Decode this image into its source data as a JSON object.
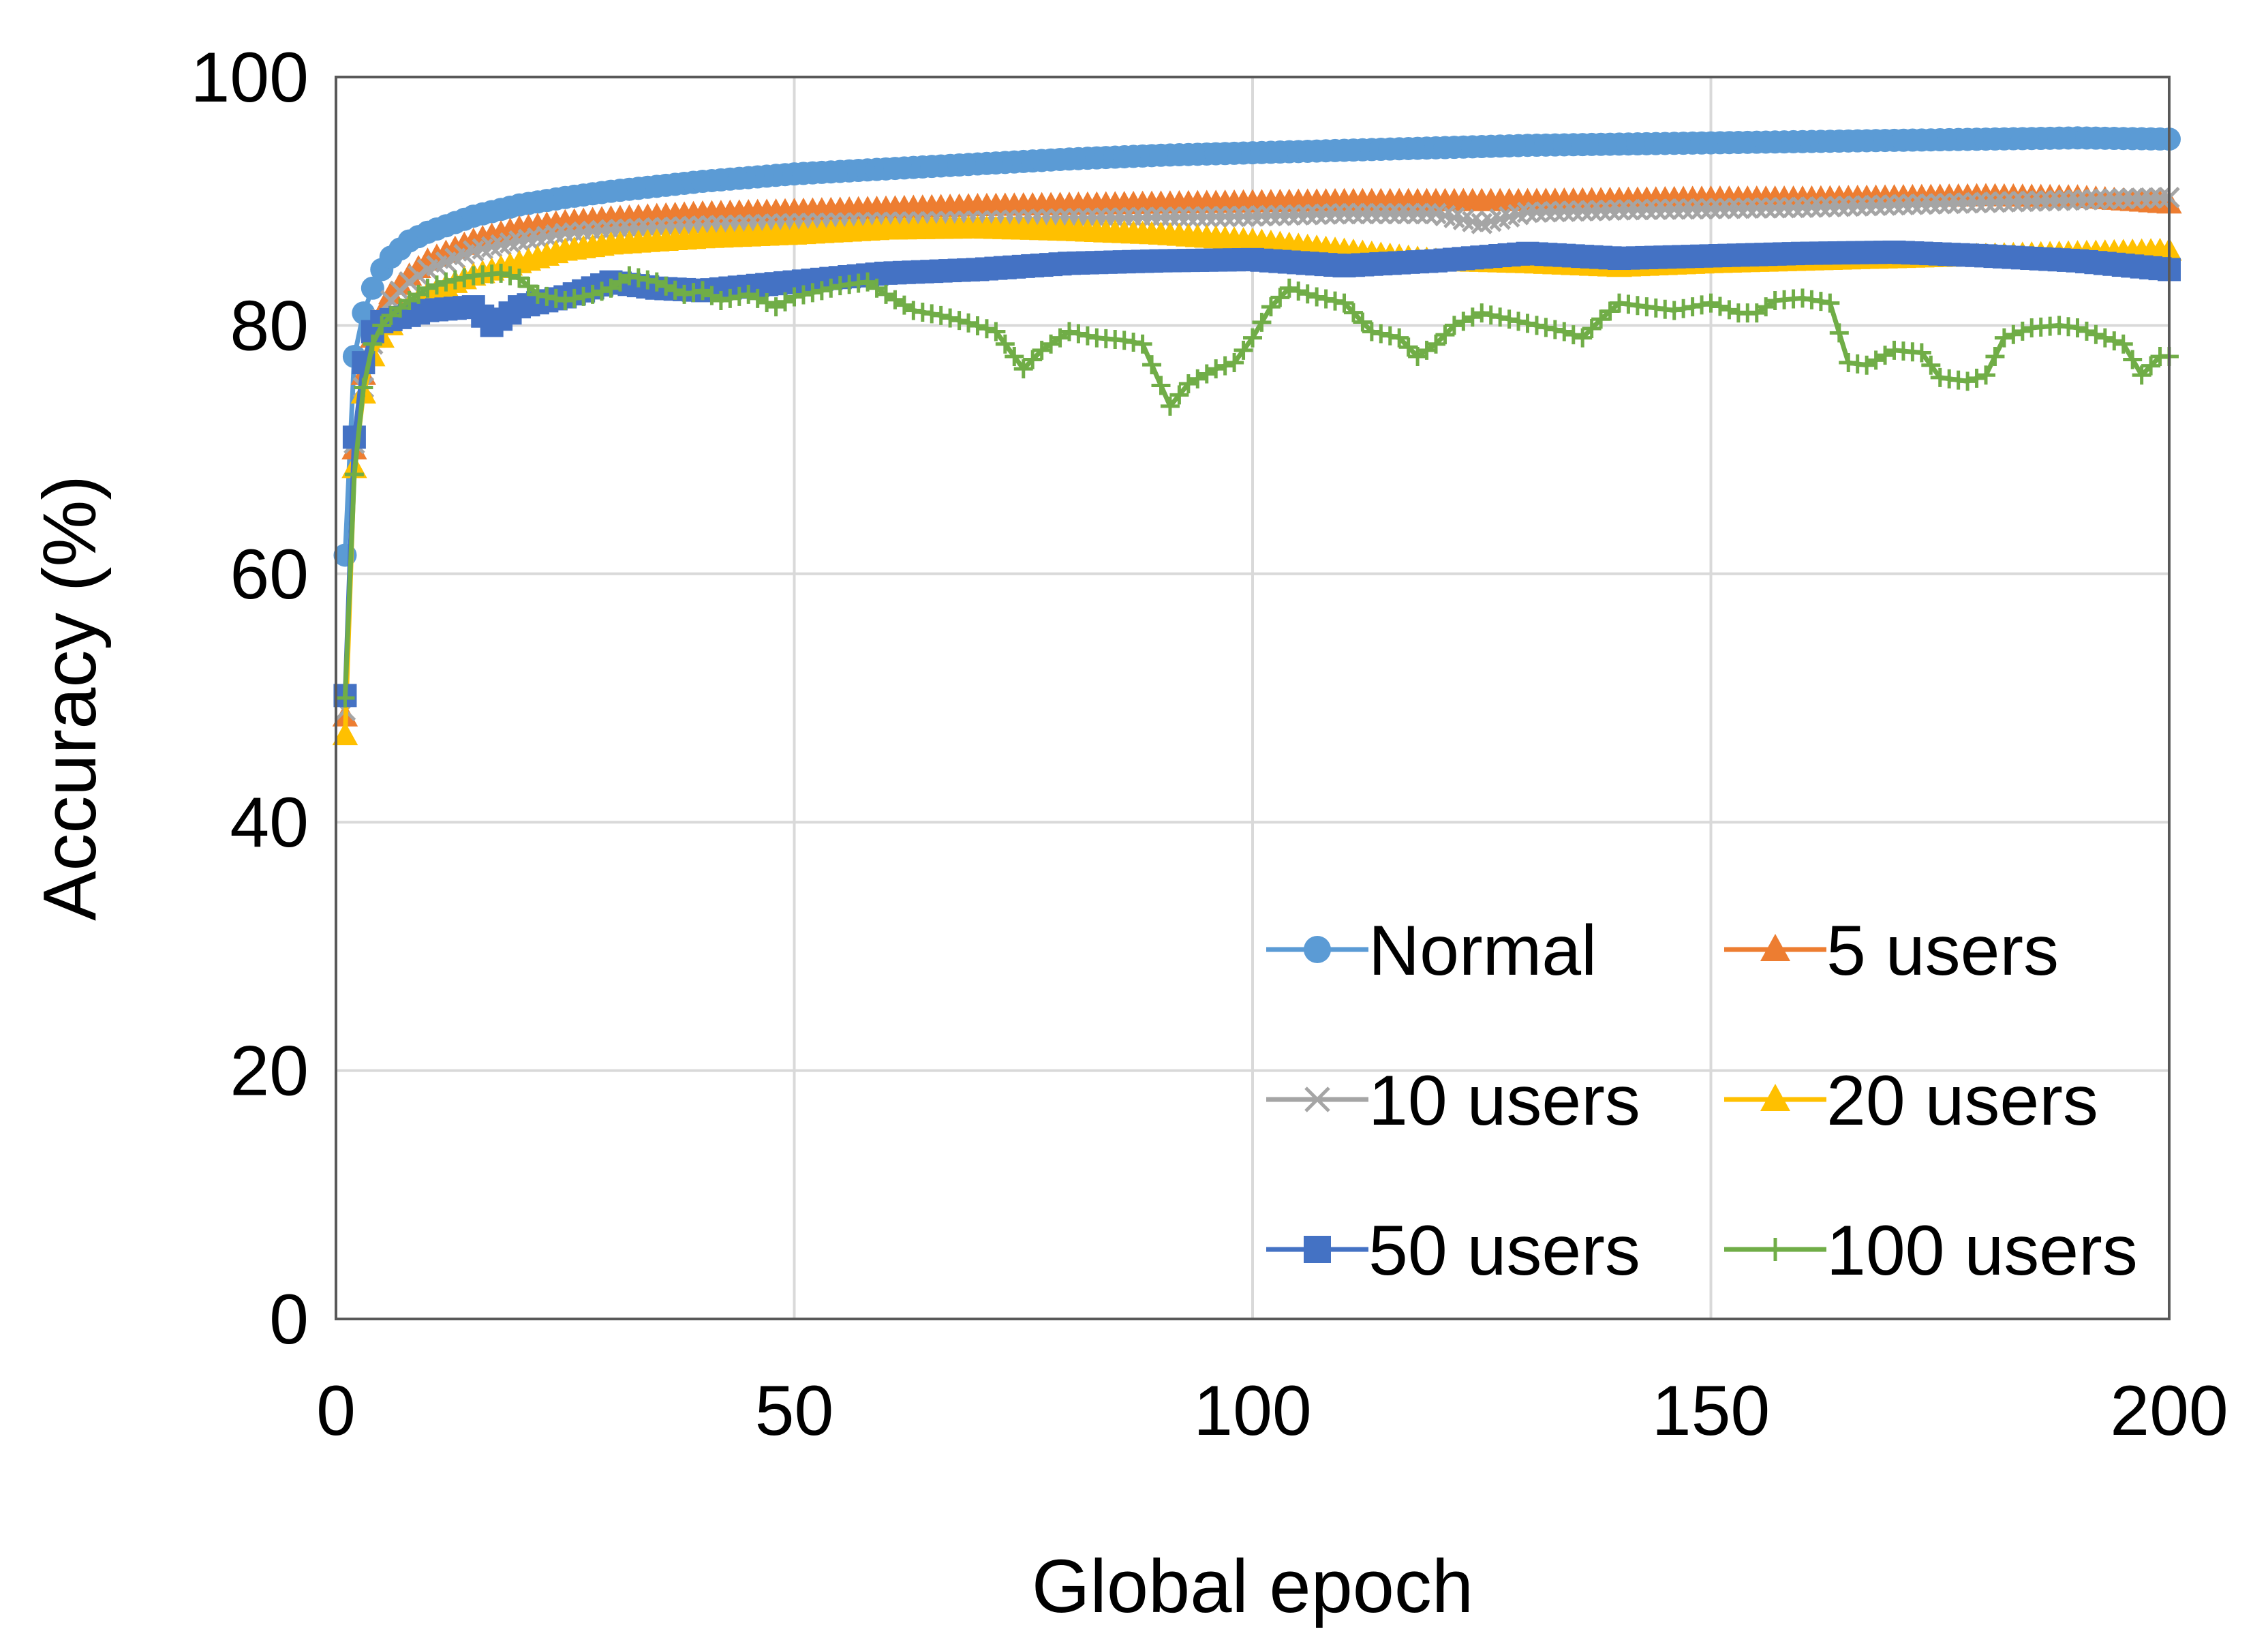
{
  "chart_data": {
    "type": "line",
    "xlabel": "Global epoch",
    "ylabel": "Accuracy (%)",
    "xlim": [
      0,
      200
    ],
    "ylim": [
      0,
      100
    ],
    "xticks": [
      0,
      50,
      100,
      150,
      200
    ],
    "yticks": [
      0,
      20,
      40,
      60,
      80,
      100
    ],
    "grid": true,
    "legend_position": "bottom-right, inside plot, 3 rows x 2 columns",
    "series": [
      {
        "name": "Normal",
        "color": "#5B9BD5",
        "marker": "circle",
        "points": [
          [
            1,
            61.5
          ],
          [
            2,
            77.5
          ],
          [
            3,
            81
          ],
          [
            4,
            83
          ],
          [
            5,
            84.5
          ],
          [
            6,
            85.5
          ],
          [
            8,
            86.8
          ],
          [
            10,
            87.5
          ],
          [
            15,
            88.8
          ],
          [
            20,
            89.7
          ],
          [
            25,
            90.3
          ],
          [
            30,
            90.8
          ],
          [
            40,
            91.6
          ],
          [
            50,
            92.2
          ],
          [
            60,
            92.6
          ],
          [
            70,
            93
          ],
          [
            80,
            93.4
          ],
          [
            90,
            93.7
          ],
          [
            100,
            93.9
          ],
          [
            110,
            94.1
          ],
          [
            120,
            94.3
          ],
          [
            130,
            94.5
          ],
          [
            140,
            94.6
          ],
          [
            150,
            94.7
          ],
          [
            160,
            94.8
          ],
          [
            170,
            94.9
          ],
          [
            180,
            95
          ],
          [
            190,
            95.1
          ],
          [
            200,
            95
          ]
        ]
      },
      {
        "name": "5 users",
        "color": "#ED7D31",
        "marker": "triangle",
        "points": [
          [
            1,
            48.5
          ],
          [
            2,
            70
          ],
          [
            3,
            76
          ],
          [
            4,
            79
          ],
          [
            5,
            81
          ],
          [
            6,
            82.5
          ],
          [
            8,
            84
          ],
          [
            10,
            85.2
          ],
          [
            15,
            86.8
          ],
          [
            20,
            87.8
          ],
          [
            25,
            88.3
          ],
          [
            30,
            88.6
          ],
          [
            40,
            89
          ],
          [
            50,
            89.2
          ],
          [
            60,
            89.4
          ],
          [
            70,
            89.6
          ],
          [
            80,
            89.7
          ],
          [
            90,
            89.8
          ],
          [
            100,
            89.9
          ],
          [
            110,
            90
          ],
          [
            120,
            90
          ],
          [
            130,
            90
          ],
          [
            140,
            90.1
          ],
          [
            150,
            90.2
          ],
          [
            160,
            90.2
          ],
          [
            170,
            90.3
          ],
          [
            180,
            90.4
          ],
          [
            190,
            90.3
          ],
          [
            200,
            89.8
          ]
        ]
      },
      {
        "name": "10 users",
        "color": "#A5A5A5",
        "marker": "x",
        "points": [
          [
            1,
            49
          ],
          [
            2,
            70.5
          ],
          [
            3,
            75
          ],
          [
            4,
            78.5
          ],
          [
            5,
            80.5
          ],
          [
            6,
            82
          ],
          [
            8,
            83.5
          ],
          [
            10,
            84.5
          ],
          [
            15,
            86
          ],
          [
            20,
            86.8
          ],
          [
            25,
            87.4
          ],
          [
            30,
            87.7
          ],
          [
            40,
            88
          ],
          [
            50,
            88.2
          ],
          [
            60,
            88.3
          ],
          [
            70,
            88.4
          ],
          [
            80,
            88.6
          ],
          [
            90,
            88.7
          ],
          [
            100,
            88.8
          ],
          [
            110,
            89
          ],
          [
            120,
            89
          ],
          [
            125,
            88.2
          ],
          [
            130,
            89.1
          ],
          [
            140,
            89.3
          ],
          [
            150,
            89.4
          ],
          [
            160,
            89.5
          ],
          [
            170,
            89.7
          ],
          [
            180,
            89.9
          ],
          [
            190,
            90.1
          ],
          [
            200,
            90.3
          ]
        ]
      },
      {
        "name": "20 users",
        "color": "#FFC000",
        "marker": "triangle",
        "points": [
          [
            1,
            47
          ],
          [
            2,
            68.5
          ],
          [
            3,
            74.5
          ],
          [
            4,
            77.5
          ],
          [
            5,
            79
          ],
          [
            6,
            80
          ],
          [
            8,
            81.5
          ],
          [
            10,
            82.5
          ],
          [
            15,
            84
          ],
          [
            20,
            85
          ],
          [
            25,
            86
          ],
          [
            30,
            86.5
          ],
          [
            40,
            87
          ],
          [
            50,
            87.3
          ],
          [
            60,
            87.7
          ],
          [
            70,
            87.8
          ],
          [
            80,
            87.6
          ],
          [
            90,
            87.3
          ],
          [
            100,
            86.8
          ],
          [
            110,
            86
          ],
          [
            120,
            85.2
          ],
          [
            130,
            85
          ],
          [
            140,
            84.7
          ],
          [
            150,
            85
          ],
          [
            160,
            85.2
          ],
          [
            170,
            85.4
          ],
          [
            180,
            85.6
          ],
          [
            190,
            85.8
          ],
          [
            200,
            86
          ]
        ]
      },
      {
        "name": "50 users",
        "color": "#4472C4",
        "marker": "square",
        "points": [
          [
            1,
            50.2
          ],
          [
            2,
            71
          ],
          [
            3,
            77
          ],
          [
            4,
            79.5
          ],
          [
            5,
            80.3
          ],
          [
            8,
            80.8
          ],
          [
            10,
            81.2
          ],
          [
            15,
            81.5
          ],
          [
            17,
            80
          ],
          [
            20,
            81.5
          ],
          [
            25,
            82.3
          ],
          [
            30,
            83.5
          ],
          [
            35,
            83
          ],
          [
            40,
            82.8
          ],
          [
            50,
            83.5
          ],
          [
            60,
            84.2
          ],
          [
            70,
            84.5
          ],
          [
            80,
            85
          ],
          [
            90,
            85.2
          ],
          [
            100,
            85.3
          ],
          [
            110,
            84.8
          ],
          [
            120,
            85.2
          ],
          [
            130,
            85.8
          ],
          [
            140,
            85.4
          ],
          [
            150,
            85.6
          ],
          [
            160,
            85.8
          ],
          [
            170,
            85.9
          ],
          [
            180,
            85.6
          ],
          [
            190,
            85.2
          ],
          [
            200,
            84.5
          ]
        ]
      },
      {
        "name": "100 users",
        "color": "#70AD47",
        "marker": "plus",
        "points": [
          [
            1,
            50
          ],
          [
            2,
            68
          ],
          [
            3,
            75
          ],
          [
            4,
            78.5
          ],
          [
            5,
            80
          ],
          [
            6,
            80.8
          ],
          [
            8,
            82
          ],
          [
            10,
            83
          ],
          [
            12,
            83.5
          ],
          [
            15,
            84
          ],
          [
            18,
            84.2
          ],
          [
            20,
            83.8
          ],
          [
            22,
            82.5
          ],
          [
            25,
            82
          ],
          [
            28,
            82.5
          ],
          [
            30,
            83
          ],
          [
            32,
            84
          ],
          [
            35,
            83.5
          ],
          [
            38,
            82.5
          ],
          [
            40,
            82.8
          ],
          [
            42,
            82
          ],
          [
            45,
            82.5
          ],
          [
            48,
            81.5
          ],
          [
            50,
            82.3
          ],
          [
            53,
            82.8
          ],
          [
            55,
            83.2
          ],
          [
            58,
            83.5
          ],
          [
            60,
            82.5
          ],
          [
            63,
            81.2
          ],
          [
            66,
            80.8
          ],
          [
            69,
            80.2
          ],
          [
            72,
            79.5
          ],
          [
            75,
            76.5
          ],
          [
            77,
            78
          ],
          [
            80,
            79.5
          ],
          [
            83,
            79
          ],
          [
            86,
            78.8
          ],
          [
            88,
            78.5
          ],
          [
            91,
            73.5
          ],
          [
            93,
            75.3
          ],
          [
            96,
            76.5
          ],
          [
            98,
            77
          ],
          [
            100,
            79
          ],
          [
            102,
            81.5
          ],
          [
            104,
            83
          ],
          [
            107,
            82.3
          ],
          [
            110,
            81.8
          ],
          [
            113,
            79.5
          ],
          [
            116,
            79
          ],
          [
            118,
            77.5
          ],
          [
            120,
            78.5
          ],
          [
            122,
            80
          ],
          [
            125,
            81
          ],
          [
            128,
            80.5
          ],
          [
            131,
            80
          ],
          [
            134,
            79.5
          ],
          [
            136,
            79
          ],
          [
            138,
            80.5
          ],
          [
            140,
            81.8
          ],
          [
            143,
            81.5
          ],
          [
            146,
            81.2
          ],
          [
            150,
            81.8
          ],
          [
            153,
            81
          ],
          [
            155,
            81
          ],
          [
            157,
            82
          ],
          [
            160,
            82.2
          ],
          [
            163,
            81.8
          ],
          [
            165,
            77
          ],
          [
            167,
            76.8
          ],
          [
            170,
            78
          ],
          [
            173,
            77.8
          ],
          [
            175,
            75.8
          ],
          [
            178,
            75.5
          ],
          [
            180,
            76
          ],
          [
            182,
            79
          ],
          [
            185,
            79.8
          ],
          [
            188,
            80
          ],
          [
            190,
            79.8
          ],
          [
            193,
            79
          ],
          [
            195,
            78.5
          ],
          [
            197,
            76
          ],
          [
            199,
            77.5
          ],
          [
            200,
            77.5
          ]
        ]
      }
    ]
  }
}
